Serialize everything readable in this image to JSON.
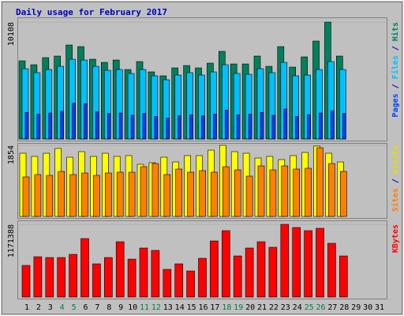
{
  "chart_data": {
    "type": "bar",
    "title": "Daily usage for February 2017",
    "categories": [
      "1",
      "2",
      "3",
      "4",
      "5",
      "6",
      "7",
      "8",
      "9",
      "10",
      "11",
      "12",
      "13",
      "14",
      "15",
      "16",
      "17",
      "18",
      "19",
      "20",
      "21",
      "22",
      "23",
      "24",
      "25",
      "26",
      "27",
      "28",
      "29",
      "30",
      "31"
    ],
    "label_colors": [
      "#000000",
      "#000000",
      "#000000",
      "#008040",
      "#008040",
      "#000000",
      "#000000",
      "#000000",
      "#000000",
      "#000000",
      "#008040",
      "#008040",
      "#000000",
      "#000000",
      "#000000",
      "#000000",
      "#000000",
      "#008040",
      "#008040",
      "#000000",
      "#000000",
      "#000000",
      "#000000",
      "#000000",
      "#008040",
      "#008040",
      "#000000",
      "#000000",
      "#000000",
      "#000000",
      "#000000"
    ],
    "legend_separator": " / ",
    "panels": [
      {
        "ylim": [
          0,
          10108
        ],
        "yticks": [
          10108
        ],
        "series": [
          {
            "name": "Hits",
            "color": "#00805c",
            "values": [
              6761,
              6420,
              7035,
              7171,
              8128,
              7991,
              6898,
              6625,
              6830,
              6010,
              6693,
              5805,
              5464,
              6147,
              6352,
              6147,
              6557,
              7581,
              6488,
              6488,
              7171,
              6283,
              7991,
              6215,
              7103,
              8469,
              10108,
              7171,
              null,
              null,
              null
            ]
          },
          {
            "name": "Files",
            "color": "#00c0ff",
            "values": [
              6078,
              5737,
              6010,
              6283,
              6898,
              6830,
              6283,
              5942,
              6010,
              5669,
              6010,
              5464,
              5122,
              5532,
              5737,
              5532,
              5805,
              6420,
              5669,
              5600,
              6078,
              5737,
              6625,
              5464,
              5532,
              6010,
              6693,
              6010,
              null,
              null,
              null
            ]
          },
          {
            "name": "Pages",
            "color": "#0040ff",
            "values": [
              2300,
              2150,
              2250,
              2400,
              3100,
              3050,
              2350,
              2200,
              2250,
              2050,
              2200,
              1950,
              1800,
              2000,
              2100,
              2000,
              2150,
              2500,
              2100,
              2150,
              2300,
              2050,
              2600,
              1950,
              2100,
              2250,
              2450,
              2200,
              null,
              null,
              null
            ]
          }
        ]
      },
      {
        "ylim": [
          0,
          1854
        ],
        "yticks": [
          1854
        ],
        "series": [
          {
            "name": "Visits",
            "color": "#ffff00",
            "values": [
              1648,
              1566,
              1648,
              1772,
              1545,
              1689,
              1566,
              1648,
              1566,
              1586,
              1360,
              1401,
              1545,
              1421,
              1586,
              1586,
              1730,
              1854,
              1689,
              1648,
              1524,
              1566,
              1483,
              1586,
              1669,
              1834,
              1648,
              1421,
              null,
              null,
              null
            ]
          },
          {
            "name": "Sites",
            "color": "#ff8000",
            "values": [
              1030,
              1092,
              1071,
              1174,
              1092,
              1133,
              1071,
              1133,
              1154,
              1154,
              1298,
              1380,
              1092,
              1236,
              1154,
              1195,
              1154,
              1298,
              1215,
              1051,
              1318,
              1215,
              1318,
              1236,
              1257,
              1792,
              1380,
              1174,
              null,
              null,
              null
            ]
          }
        ]
      },
      {
        "ylim": [
          0,
          1171388
        ],
        "yticks": [
          1171388
        ],
        "series": [
          {
            "name": "KBytes",
            "color": "#ff0000",
            "values": [
              509299,
              649357,
              636624,
              636624,
              687554,
              942205,
              534764,
              636624,
              891276,
              611159,
              789417,
              751220,
              445637,
              534764,
              420172,
              623892,
              904008,
              1069528,
              662089,
              789417,
              891276,
              802150,
              1171388,
              1120459,
              1069528,
              1107727,
              865812,
              662089,
              null,
              null,
              null
            ]
          }
        ]
      }
    ]
  }
}
